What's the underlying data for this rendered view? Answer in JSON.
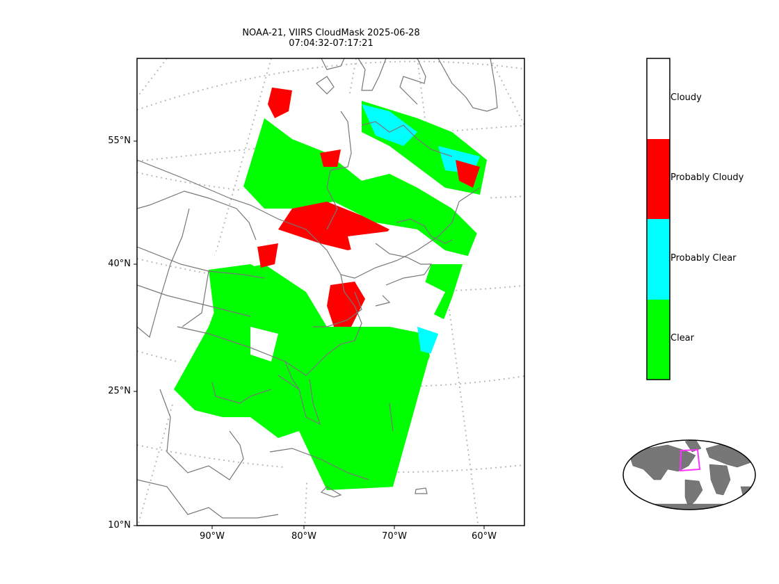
{
  "title": {
    "line1": "NOAA-21, VIIRS CloudMask 2025-06-28",
    "line2": "07:04:32-07:17:21"
  },
  "axes": {
    "lat_ticks": [
      "55°N",
      "40°N",
      "25°N",
      "10°N"
    ],
    "lon_ticks": [
      "90°W",
      "80°W",
      "70°W",
      "60°W"
    ]
  },
  "legend": {
    "items": [
      {
        "label": "Cloudy",
        "color": "#ffffff"
      },
      {
        "label": "Probably Cloudy",
        "color": "#ff0000"
      },
      {
        "label": "Probably Clear",
        "color": "#00ffff"
      },
      {
        "label": "Clear",
        "color": "#00ff00"
      }
    ]
  },
  "colors": {
    "clear": "#00ff00",
    "probably_clear": "#00ffff",
    "probably_cloudy": "#ff0000",
    "cloudy": "#ffffff",
    "coastline": "#777777",
    "graticule": "#bbbbbb",
    "inset_highlight": "#ff33ff"
  }
}
